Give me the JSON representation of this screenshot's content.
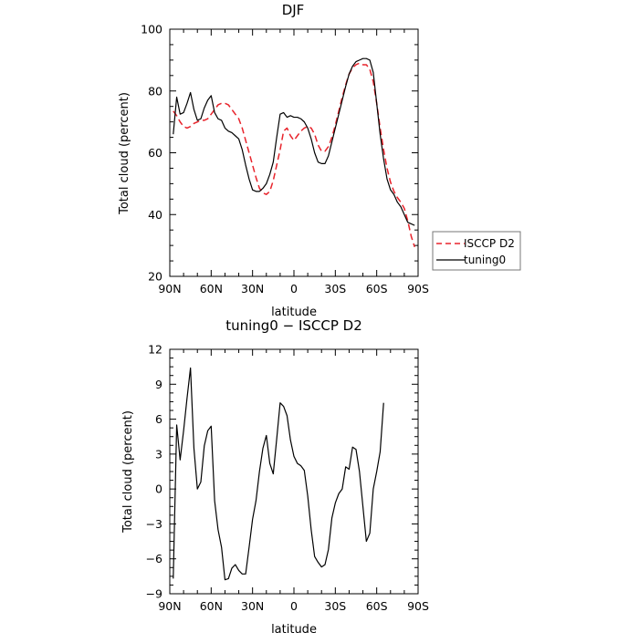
{
  "chart_data": [
    {
      "type": "line",
      "title": "DJF",
      "xlabel": "latitude",
      "ylabel": "Total cloud (percent)",
      "xlim": [
        90,
        -90
      ],
      "ylim": [
        20,
        100
      ],
      "x_ticks": [
        90,
        60,
        30,
        0,
        -30,
        -60,
        -90
      ],
      "x_tick_labels": [
        "90N",
        "60N",
        "30N",
        "0",
        "30S",
        "60S",
        "90S"
      ],
      "y_ticks": [
        20,
        40,
        60,
        80,
        100
      ],
      "y_tick_labels": [
        "20",
        "40",
        "60",
        "80",
        "100"
      ],
      "legend_position": "right-outside",
      "series": [
        {
          "name": "ISCCP D2",
          "color": "#e8242c",
          "dash": "dashed",
          "x": [
            87.5,
            85,
            82.5,
            80,
            77.5,
            75,
            72.5,
            70,
            67.5,
            65,
            62.5,
            60,
            57.5,
            55,
            52.5,
            50,
            47.5,
            45,
            42.5,
            40,
            37.5,
            35,
            32.5,
            30,
            27.5,
            25,
            22.5,
            20,
            17.5,
            15,
            12.5,
            10,
            7.5,
            5,
            2.5,
            0,
            -2.5,
            -5,
            -7.5,
            -10,
            -12.5,
            -15,
            -17.5,
            -20,
            -22.5,
            -25,
            -27.5,
            -30,
            -32.5,
            -35,
            -37.5,
            -40,
            -42.5,
            -45,
            -47.5,
            -50,
            -52.5,
            -55,
            -57.5,
            -60,
            -62.5,
            -65,
            -67.5,
            -70,
            -72.5,
            -75,
            -77.5,
            -80,
            -82.5,
            -85,
            -87.5
          ],
          "values": [
            73.5,
            72,
            70,
            68.5,
            68,
            68.5,
            69.5,
            70,
            70.5,
            70.5,
            71,
            72.5,
            74,
            75.5,
            76,
            76,
            75.5,
            74,
            72.5,
            71,
            68,
            64,
            60,
            56,
            52,
            48.5,
            47,
            46.5,
            47.5,
            51,
            56,
            61,
            67,
            68,
            65.5,
            64,
            65.5,
            67,
            68,
            68.5,
            68,
            66,
            62.5,
            60.5,
            60.5,
            62,
            65,
            69,
            73.5,
            78,
            82,
            85.5,
            87.5,
            88.5,
            89,
            88.5,
            88.5,
            87,
            83,
            76,
            68,
            61,
            55,
            50.5,
            47.5,
            45.5,
            44,
            42,
            38,
            33,
            29.5
          ]
        },
        {
          "name": "tuning0",
          "color": "#000000",
          "dash": "solid",
          "x": [
            87.5,
            85,
            82.5,
            80,
            77.5,
            75,
            72.5,
            70,
            67.5,
            65,
            62.5,
            60,
            57.5,
            55,
            52.5,
            50,
            47.5,
            45,
            42.5,
            40,
            37.5,
            35,
            32.5,
            30,
            27.5,
            25,
            22.5,
            20,
            17.5,
            15,
            12.5,
            10,
            7.5,
            5,
            2.5,
            0,
            -2.5,
            -5,
            -7.5,
            -10,
            -12.5,
            -15,
            -17.5,
            -20,
            -22.5,
            -25,
            -27.5,
            -30,
            -32.5,
            -35,
            -37.5,
            -40,
            -42.5,
            -45,
            -47.5,
            -50,
            -52.5,
            -55,
            -57.5,
            -60,
            -62.5,
            -65,
            -67.5,
            -70,
            -72.5,
            -75,
            -77.5,
            -80,
            -82.5,
            -85,
            -87.5
          ],
          "values": [
            66,
            78,
            72.5,
            73,
            76,
            79.5,
            74,
            70.5,
            71,
            74.5,
            77,
            78.5,
            73,
            71,
            70.5,
            68,
            67,
            66.5,
            65.5,
            64.5,
            61,
            56,
            51.5,
            48,
            47.5,
            47.5,
            48.5,
            50,
            53,
            57,
            65,
            72.5,
            73,
            71.5,
            72,
            71.5,
            71.5,
            71,
            70,
            68,
            64.5,
            60,
            57,
            56.5,
            56.5,
            59,
            63.5,
            68,
            72.5,
            77,
            81.5,
            85.5,
            88,
            89.5,
            90,
            90.5,
            90.5,
            90,
            86,
            76,
            66,
            58,
            51.5,
            48,
            46.5,
            44,
            42.5,
            40,
            37.5,
            37,
            36.5
          ]
        }
      ]
    },
    {
      "type": "line",
      "title": "tuning0 − ISCCP D2",
      "xlabel": "latitude",
      "ylabel": "Total cloud (percent)",
      "xlim": [
        90,
        -90
      ],
      "ylim": [
        -9,
        12
      ],
      "x_ticks": [
        90,
        60,
        30,
        0,
        -30,
        -60,
        -90
      ],
      "x_tick_labels": [
        "90N",
        "60N",
        "30N",
        "0",
        "30S",
        "60S",
        "90S"
      ],
      "y_ticks": [
        -9,
        -6,
        -3,
        0,
        3,
        6,
        9,
        12
      ],
      "y_tick_labels": [
        "−9",
        "−6",
        "−3",
        "0",
        "3",
        "6",
        "9",
        "12"
      ],
      "series": [
        {
          "color": "#000000",
          "dash": "solid",
          "x": [
            87.5,
            85,
            82.5,
            80,
            77.5,
            75,
            72.5,
            70,
            67.5,
            65,
            62.5,
            60,
            57.5,
            55,
            52.5,
            50,
            47.5,
            45,
            42.5,
            40,
            37.5,
            35,
            32.5,
            30,
            27.5,
            25,
            22.5,
            20,
            17.5,
            15,
            12.5,
            10,
            7.5,
            5,
            2.5,
            0,
            -2.5,
            -5,
            -7.5,
            -10,
            -12.5,
            -15,
            -17.5,
            -20,
            -22.5,
            -25,
            -27.5,
            -30,
            -32.5,
            -35,
            -37.5,
            -40,
            -42.5,
            -45,
            -47.5,
            -50,
            -52.5,
            -55,
            -57.5,
            -60,
            -62.5,
            -65,
            -67.5,
            -70,
            -72.5,
            -75,
            -77.5,
            -80,
            -82.5,
            -85,
            -87.5
          ],
          "values": [
            -7.7,
            5.5,
            2.5,
            5,
            7.8,
            10.4,
            3.5,
            0,
            0.6,
            3.7,
            5,
            5.4,
            -1,
            -3.5,
            -5,
            -7.8,
            -7.7,
            -6.8,
            -6.5,
            -7,
            -7.3,
            -7.3,
            -5,
            -2.6,
            -1,
            1.5,
            3.5,
            4.6,
            2.2,
            1.3,
            4.3,
            7.4,
            7.1,
            6.3,
            4.2,
            2.8,
            2.2,
            2,
            1.6,
            -0.6,
            -3.5,
            -5.8,
            -6.3,
            -6.7,
            -6.5,
            -5.2,
            -2.5,
            -1.2,
            -0.4,
            0,
            1.9,
            1.7,
            3.6,
            3.4,
            1.5,
            -1.5,
            -4.5,
            -3.8,
            0,
            1.5,
            3.2,
            7.4,
            null,
            null,
            null,
            null,
            null,
            null,
            null,
            null,
            null
          ]
        }
      ]
    }
  ]
}
